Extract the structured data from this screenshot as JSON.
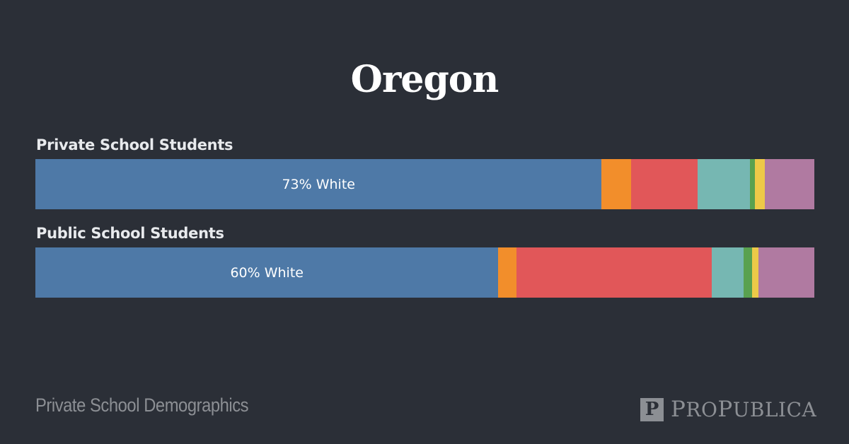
{
  "title": "Oregon",
  "footer": {
    "left_text": "Private School Demographics",
    "logo_mark": "P",
    "logo_text": "ProPublica"
  },
  "colors": {
    "background": "#2b2f37",
    "white": "#4e79a7",
    "orange": "#f28e2b",
    "red": "#e15759",
    "teal": "#76b7b2",
    "green": "#59a14f",
    "yellow": "#edc948",
    "purple": "#b07aa1"
  },
  "chart_data": {
    "type": "bar",
    "orientation": "horizontal-stacked-100",
    "title": "Oregon",
    "categories": [
      "Private School Students",
      "Public School Students"
    ],
    "series": [
      {
        "name": "White",
        "color": "#4e79a7",
        "values": [
          72.7,
          59.5
        ]
      },
      {
        "name": "Orange segment",
        "color": "#f28e2b",
        "values": [
          3.8,
          2.3
        ]
      },
      {
        "name": "Red segment",
        "color": "#e15759",
        "values": [
          8.5,
          25.1
        ]
      },
      {
        "name": "Teal segment",
        "color": "#76b7b2",
        "values": [
          6.7,
          4.1
        ]
      },
      {
        "name": "Green segment",
        "color": "#59a14f",
        "values": [
          0.7,
          1.1
        ]
      },
      {
        "name": "Yellow segment",
        "color": "#edc948",
        "values": [
          1.2,
          0.8
        ]
      },
      {
        "name": "Purple segment",
        "color": "#b07aa1",
        "values": [
          6.4,
          7.2
        ]
      }
    ],
    "data_labels": [
      "73% White",
      "60% White"
    ],
    "xlim": [
      0,
      100
    ],
    "grid": false,
    "legend": "none"
  },
  "rows": [
    {
      "label": "Private School Students",
      "segment_label": "73% White",
      "segments": [
        {
          "name": "white",
          "pct": 72.7,
          "color": "#4e79a7"
        },
        {
          "name": "orange",
          "pct": 3.8,
          "color": "#f28e2b"
        },
        {
          "name": "red",
          "pct": 8.5,
          "color": "#e15759"
        },
        {
          "name": "teal",
          "pct": 6.7,
          "color": "#76b7b2"
        },
        {
          "name": "green",
          "pct": 0.7,
          "color": "#59a14f"
        },
        {
          "name": "yellow",
          "pct": 1.2,
          "color": "#edc948"
        },
        {
          "name": "purple",
          "pct": 6.4,
          "color": "#b07aa1"
        }
      ]
    },
    {
      "label": "Public School Students",
      "segment_label": "60% White",
      "segments": [
        {
          "name": "white",
          "pct": 59.5,
          "color": "#4e79a7"
        },
        {
          "name": "orange",
          "pct": 2.3,
          "color": "#f28e2b"
        },
        {
          "name": "red",
          "pct": 25.1,
          "color": "#e15759"
        },
        {
          "name": "teal",
          "pct": 4.1,
          "color": "#76b7b2"
        },
        {
          "name": "green",
          "pct": 1.1,
          "color": "#59a14f"
        },
        {
          "name": "yellow",
          "pct": 0.8,
          "color": "#edc948"
        },
        {
          "name": "purple",
          "pct": 7.2,
          "color": "#b07aa1"
        }
      ]
    }
  ]
}
